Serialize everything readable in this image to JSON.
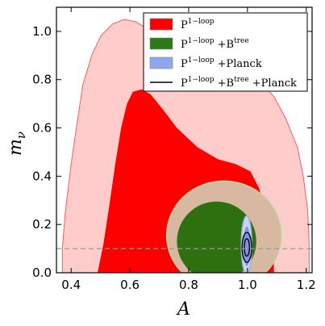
{
  "chart_data": {
    "type": "contour",
    "title": "",
    "xlabel": "A",
    "ylabel_base": "m",
    "ylabel_sub": "ν",
    "xlim": [
      0.35,
      1.22
    ],
    "ylim": [
      0.0,
      1.1
    ],
    "xticks": [
      0.4,
      0.6,
      0.8,
      1.0,
      1.2
    ],
    "xtick_labels": [
      "0.4",
      "0.6",
      "0.8",
      "1.0",
      "1.2"
    ],
    "yticks": [
      0.0,
      0.2,
      0.4,
      0.6,
      0.8,
      1.0
    ],
    "ytick_labels": [
      "0.0",
      "0.2",
      "0.4",
      "0.6",
      "0.8",
      "1.0"
    ],
    "reference_line": {
      "y": 0.1,
      "style": "dashed",
      "color": "#999999"
    },
    "legend": {
      "placement": "top-right",
      "entries": [
        {
          "base": "P",
          "sup": "1−loop",
          "rest": "",
          "sup2": "",
          "tail": "",
          "swatch": "fill",
          "color": "#ff0000"
        },
        {
          "base": "P",
          "sup": "1−loop",
          "rest": " +B",
          "sup2": "tree",
          "tail": "",
          "swatch": "fill",
          "color": "#2a7a1a"
        },
        {
          "base": "P",
          "sup": "1−loop",
          "rest": " +Planck",
          "sup2": "",
          "tail": "",
          "swatch": "fill",
          "color": "#8ea6ef"
        },
        {
          "base": "P",
          "sup": "1−loop",
          "rest": " +B",
          "sup2": "tree",
          "tail": " +Planck",
          "swatch": "line",
          "color": "#000000"
        }
      ]
    },
    "series": [
      {
        "name": "P1-loop (95%)",
        "fill": "#ffcccc",
        "stroke": "#f06060",
        "layer": "outer",
        "points": [
          [
            0.37,
            0.0
          ],
          [
            0.37,
            0.1
          ],
          [
            0.38,
            0.25
          ],
          [
            0.4,
            0.45
          ],
          [
            0.42,
            0.62
          ],
          [
            0.44,
            0.78
          ],
          [
            0.47,
            0.9
          ],
          [
            0.5,
            0.98
          ],
          [
            0.54,
            1.03
          ],
          [
            0.58,
            1.05
          ],
          [
            0.62,
            1.04
          ],
          [
            0.66,
            1.01
          ],
          [
            0.72,
            0.97
          ],
          [
            0.8,
            0.92
          ],
          [
            0.9,
            0.88
          ],
          [
            0.98,
            0.85
          ],
          [
            1.04,
            0.8
          ],
          [
            1.09,
            0.73
          ],
          [
            1.13,
            0.64
          ],
          [
            1.17,
            0.52
          ],
          [
            1.19,
            0.4
          ],
          [
            1.205,
            0.26
          ],
          [
            1.21,
            0.12
          ],
          [
            1.21,
            0.0
          ]
        ]
      },
      {
        "name": "P1-loop (68%)",
        "fill": "#ff0000",
        "stroke": "none",
        "layer": "inner",
        "points": [
          [
            0.49,
            0.0
          ],
          [
            0.51,
            0.12
          ],
          [
            0.53,
            0.28
          ],
          [
            0.55,
            0.45
          ],
          [
            0.57,
            0.6
          ],
          [
            0.59,
            0.7
          ],
          [
            0.61,
            0.75
          ],
          [
            0.64,
            0.76
          ],
          [
            0.67,
            0.74
          ],
          [
            0.71,
            0.68
          ],
          [
            0.76,
            0.6
          ],
          [
            0.83,
            0.52
          ],
          [
            0.9,
            0.47
          ],
          [
            0.96,
            0.45
          ],
          [
            1.01,
            0.42
          ],
          [
            1.04,
            0.35
          ],
          [
            1.06,
            0.26
          ],
          [
            1.08,
            0.17
          ],
          [
            1.09,
            0.08
          ],
          [
            1.09,
            0.0
          ]
        ]
      },
      {
        "name": "P1-loop + Btree (95%)",
        "fill": "#d8b8a0",
        "stroke": "#b7d7a0",
        "layer": "ellipse",
        "ellipse": {
          "cx": 0.92,
          "cy": 0.155,
          "rx": 0.195,
          "ry": 0.225
        }
      },
      {
        "name": "P1-loop + Btree (68%)",
        "fill": "#2e6f10",
        "stroke": "none",
        "layer": "ellipse",
        "ellipse": {
          "cx": 0.895,
          "cy": 0.13,
          "rx": 0.135,
          "ry": 0.165
        }
      },
      {
        "name": "P1-loop + Planck (95%)",
        "fill": "#c8d4f5",
        "stroke": "#9db0e8",
        "layer": "ellipse",
        "ellipse": {
          "cx": 0.997,
          "cy": 0.115,
          "rx": 0.018,
          "ry": 0.12
        }
      },
      {
        "name": "P1-loop + Planck (68%)",
        "fill": "#7f95e0",
        "stroke": "none",
        "layer": "ellipse",
        "ellipse": {
          "cx": 0.998,
          "cy": 0.11,
          "rx": 0.012,
          "ry": 0.082
        }
      },
      {
        "name": "P1-loop + Btree + Planck (95%)",
        "fill": "none",
        "stroke": "#000000",
        "layer": "ellipse",
        "ellipse": {
          "cx": 0.998,
          "cy": 0.105,
          "rx": 0.016,
          "ry": 0.062
        }
      },
      {
        "name": "P1-loop + Btree + Planck (68%)",
        "fill": "none",
        "stroke": "#000000",
        "layer": "ellipse",
        "ellipse": {
          "cx": 0.998,
          "cy": 0.105,
          "rx": 0.009,
          "ry": 0.036
        }
      }
    ]
  }
}
